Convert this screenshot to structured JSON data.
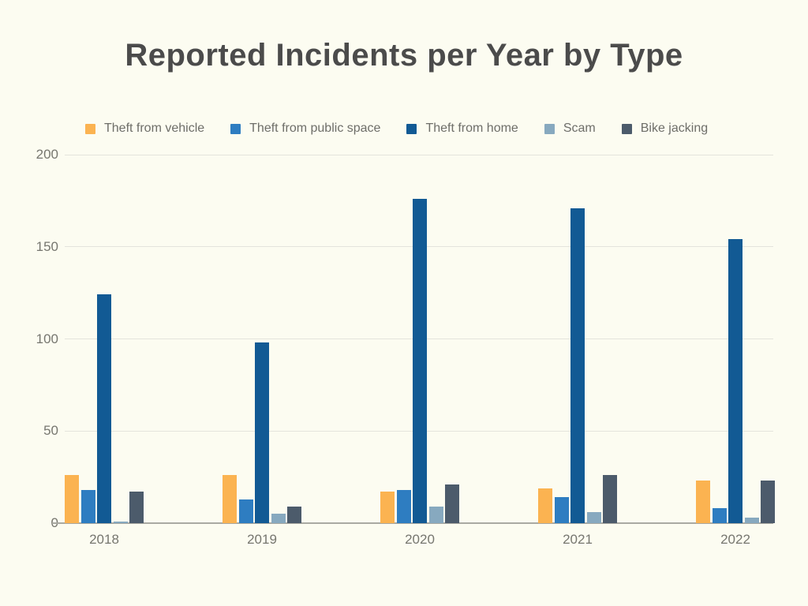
{
  "chart_data": {
    "type": "bar",
    "title": "Reported Incidents per Year by Type",
    "categories": [
      "2018",
      "2019",
      "2020",
      "2021",
      "2022"
    ],
    "series": [
      {
        "name": "Theft from vehicle",
        "color": "#FBB351",
        "values": [
          26,
          26,
          17,
          19,
          23
        ]
      },
      {
        "name": "Theft from public space",
        "color": "#2E7DC1",
        "values": [
          18,
          13,
          18,
          14,
          8
        ]
      },
      {
        "name": "Theft from home",
        "color": "#125A94",
        "values": [
          124,
          98,
          176,
          171,
          154
        ]
      },
      {
        "name": "Scam",
        "color": "#87A9BF",
        "values": [
          1,
          5,
          9,
          6,
          3
        ]
      },
      {
        "name": "Bike jacking",
        "color": "#4C5B6B",
        "values": [
          17,
          9,
          21,
          26,
          23
        ]
      }
    ],
    "yticks": [
      0,
      50,
      100,
      150,
      200
    ],
    "ylim": [
      0,
      200
    ],
    "xlabel": "",
    "ylabel": "",
    "grid": true,
    "legend_position": "top-left",
    "colors": {
      "background": "#FCFCF1",
      "title_text": "#4B4B4B",
      "axis_text": "#76766F",
      "legend_text": "#6E6E69",
      "gridline": "#E4E4DC",
      "axis_line": "#A9A9A2"
    }
  }
}
